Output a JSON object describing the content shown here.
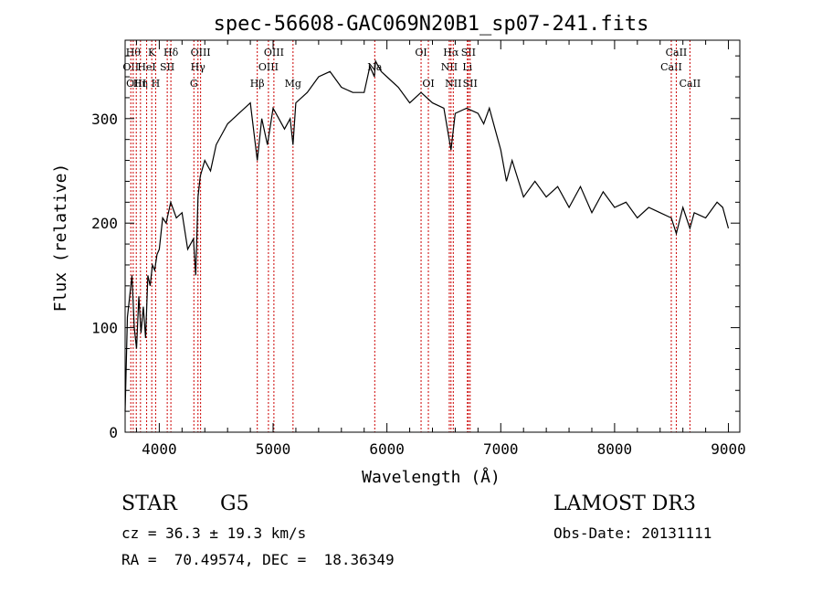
{
  "chart_data": {
    "type": "line",
    "title": "spec-56608-GAC069N20B1_sp07-241.fits",
    "xlabel": "Wavelength (Å)",
    "ylabel": "Flux (relative)",
    "xlim": [
      3700,
      9100
    ],
    "ylim": [
      0,
      375
    ],
    "xticks": [
      4000,
      5000,
      6000,
      7000,
      8000,
      9000
    ],
    "yticks": [
      0,
      100,
      200,
      300
    ],
    "grid": false,
    "legend": "none",
    "line_color": "#000000",
    "marker_color": "#cc0000",
    "series": [
      {
        "x": [
          3700,
          3720,
          3740,
          3760,
          3780,
          3800,
          3820,
          3840,
          3860,
          3880,
          3900,
          3920,
          3940,
          3960,
          3980,
          4000,
          4030,
          4060,
          4100,
          4150,
          4200,
          4250,
          4300,
          4320,
          4340,
          4360,
          4400,
          4450,
          4500,
          4600,
          4700,
          4800,
          4861,
          4900,
          4950,
          5000,
          5050,
          5100,
          5150,
          5175,
          5200,
          5300,
          5400,
          5500,
          5600,
          5700,
          5800,
          5850,
          5890,
          5900,
          5950,
          6000,
          6100,
          6200,
          6300,
          6400,
          6500,
          6563,
          6600,
          6700,
          6800,
          6850,
          6900,
          6950,
          7000,
          7050,
          7100,
          7200,
          7300,
          7400,
          7500,
          7600,
          7700,
          7800,
          7900,
          8000,
          8100,
          8200,
          8300,
          8400,
          8498,
          8542,
          8600,
          8662,
          8700,
          8800,
          8900,
          8950,
          9000
        ],
        "values": [
          20,
          110,
          130,
          150,
          100,
          80,
          130,
          95,
          120,
          90,
          150,
          140,
          160,
          155,
          170,
          175,
          205,
          200,
          220,
          205,
          210,
          175,
          185,
          150,
          225,
          245,
          260,
          250,
          275,
          295,
          305,
          315,
          260,
          300,
          275,
          310,
          300,
          290,
          300,
          275,
          315,
          325,
          340,
          345,
          330,
          325,
          325,
          350,
          340,
          355,
          345,
          340,
          330,
          315,
          325,
          315,
          310,
          270,
          305,
          310,
          305,
          295,
          310,
          290,
          270,
          240,
          260,
          225,
          240,
          225,
          235,
          215,
          235,
          210,
          230,
          215,
          220,
          205,
          215,
          210,
          205,
          190,
          215,
          195,
          210,
          205,
          220,
          215,
          195
        ]
      }
    ],
    "line_markers": [
      {
        "x": 3750,
        "label": "OII",
        "row": 2
      },
      {
        "x": 3771,
        "label": "Hθ",
        "row": 1
      },
      {
        "x": 3798,
        "label": "OIII",
        "row": 3
      },
      {
        "x": 3835,
        "label": "Hη",
        "row": 3
      },
      {
        "x": 3889,
        "label": "HeI",
        "row": 2
      },
      {
        "x": 3934,
        "label": "K",
        "row": 1
      },
      {
        "x": 3968,
        "label": "H",
        "row": 3
      },
      {
        "x": 4070,
        "label": "SII",
        "row": 2
      },
      {
        "x": 4102,
        "label": "Hδ",
        "row": 1
      },
      {
        "x": 4304,
        "label": "G",
        "row": 3
      },
      {
        "x": 4340,
        "label": "Hγ",
        "row": 2
      },
      {
        "x": 4363,
        "label": "OIII",
        "row": 1
      },
      {
        "x": 4861,
        "label": "Hβ",
        "row": 3
      },
      {
        "x": 4959,
        "label": "OIII",
        "row": 2
      },
      {
        "x": 5007,
        "label": "OIII",
        "row": 1
      },
      {
        "x": 5175,
        "label": "Mg",
        "row": 3
      },
      {
        "x": 5893,
        "label": "Na",
        "row": 2
      },
      {
        "x": 6300,
        "label": "OI",
        "row": 1
      },
      {
        "x": 6364,
        "label": "OI",
        "row": 3
      },
      {
        "x": 6548,
        "label": "NII",
        "row": 2
      },
      {
        "x": 6563,
        "label": "Hα",
        "row": 1
      },
      {
        "x": 6583,
        "label": "NII",
        "row": 3
      },
      {
        "x": 6707,
        "label": "Li",
        "row": 2
      },
      {
        "x": 6716,
        "label": "SII",
        "row": 1
      },
      {
        "x": 6731,
        "label": "SII",
        "row": 3
      },
      {
        "x": 8498,
        "label": "CaII",
        "row": 2
      },
      {
        "x": 8542,
        "label": "CaII",
        "row": 1
      },
      {
        "x": 8662,
        "label": "CaII",
        "row": 3
      }
    ]
  },
  "info": {
    "object_class": "STAR",
    "subclass": "G5",
    "survey": "LAMOST DR3",
    "cz": "cz = 36.3 ± 19.3 km/s",
    "obs_date": "Obs-Date: 20131111",
    "coords": "RA =  70.49574, DEC =  18.36349"
  }
}
